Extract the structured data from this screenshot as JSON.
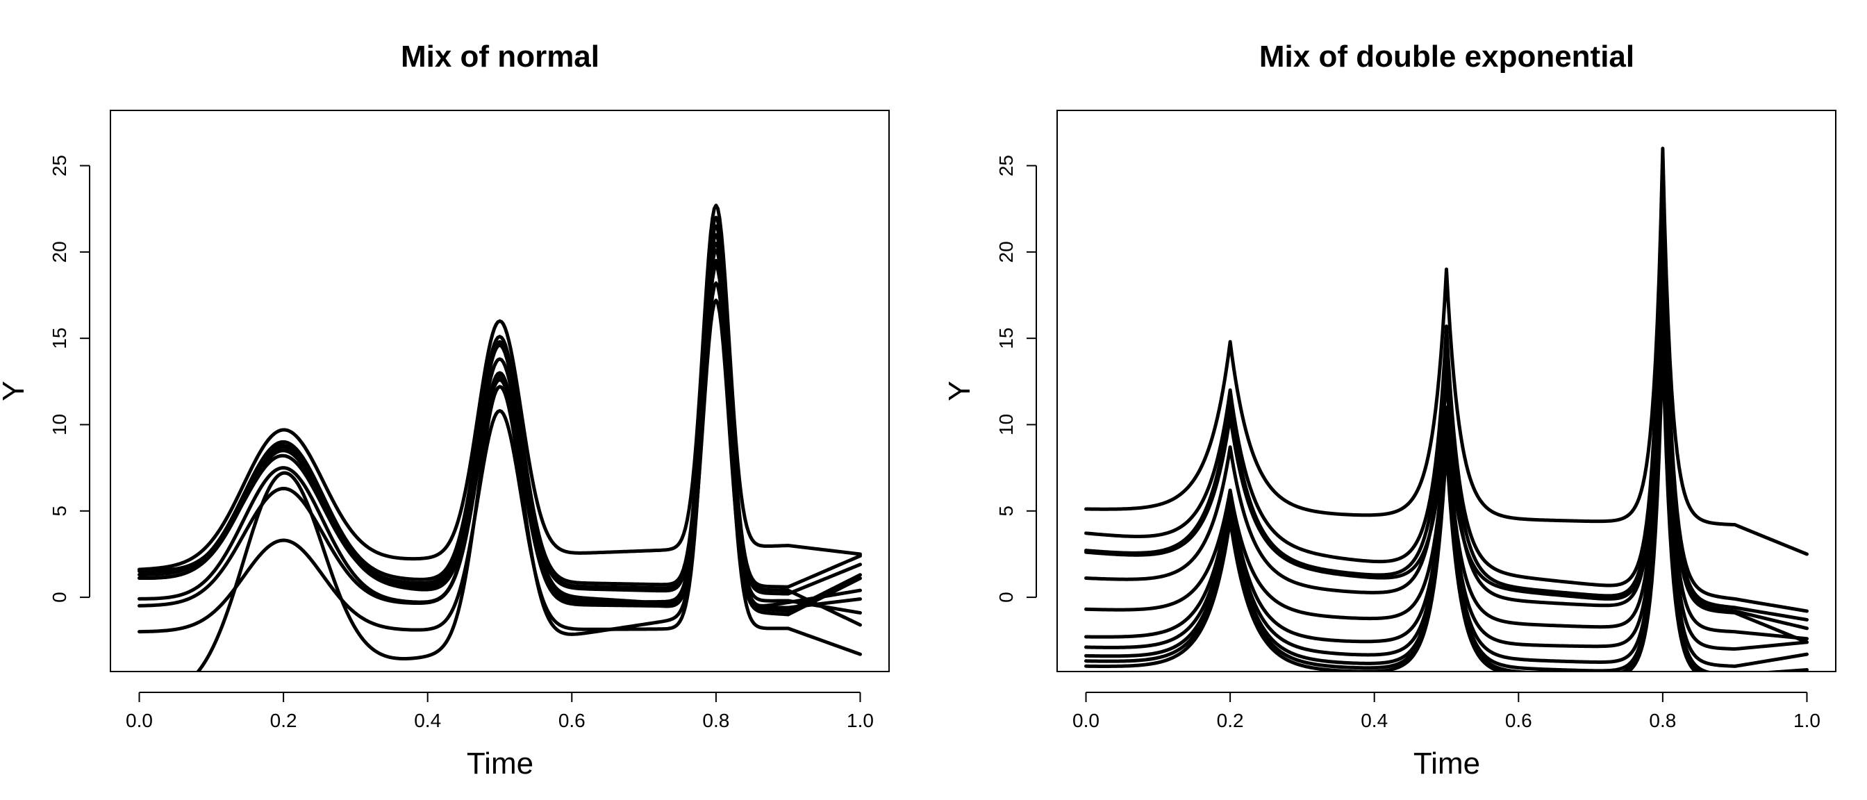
{
  "chart_data": [
    {
      "type": "line",
      "title": "Mix of normal",
      "xlabel": "Time",
      "ylabel": "Y",
      "xlim": [
        -0.04,
        1.04
      ],
      "ylim": [
        -4.3,
        28.2
      ],
      "xticks": [
        "0.0",
        "0.2",
        "0.4",
        "0.6",
        "0.8",
        "1.0"
      ],
      "yticks": [
        "0",
        "5",
        "10",
        "15",
        "20",
        "25"
      ],
      "line_color": "#000000",
      "kind": "gaussian",
      "peak_centers": [
        0.2,
        0.5,
        0.8
      ],
      "peak_widths": [
        0.055,
        0.03,
        0.018
      ],
      "series": [
        {
          "values": [
            1.3,
            9.0,
            15.1,
            22.0,
            0.6,
            2.4
          ]
        },
        {
          "values": [
            1.1,
            8.7,
            14.8,
            21.5,
            0.2,
            1.9
          ]
        },
        {
          "values": [
            1.6,
            8.2,
            14.6,
            21.0,
            -0.8,
            1.3
          ]
        },
        {
          "values": [
            1.6,
            9.7,
            16.0,
            22.7,
            3.0,
            2.5
          ]
        },
        {
          "values": [
            1.1,
            8.5,
            13.8,
            20.5,
            0.4,
            -1.6
          ]
        },
        {
          "values": [
            -0.5,
            6.3,
            12.6,
            20.1,
            -0.2,
            -0.9
          ]
        },
        {
          "values": [
            -0.1,
            7.5,
            13.0,
            19.5,
            -0.6,
            -0.1
          ]
        },
        {
          "values": [
            -2.0,
            3.3,
            10.8,
            19.2,
            -1.8,
            -3.3
          ]
        },
        {
          "values": [
            -6.0,
            7.2,
            12.2,
            18.2,
            -0.3,
            0.4
          ]
        },
        {
          "values": [
            1.5,
            8.8,
            12.8,
            17.2,
            -1.0,
            1.1
          ]
        }
      ]
    },
    {
      "type": "line",
      "title": "Mix of double exponential",
      "xlabel": "Time",
      "ylabel": "Y",
      "xlim": [
        -0.04,
        1.04
      ],
      "ylim": [
        -4.3,
        28.2
      ],
      "xticks": [
        "0.0",
        "0.2",
        "0.4",
        "0.6",
        "0.8",
        "1.0"
      ],
      "yticks": [
        "0",
        "5",
        "10",
        "15",
        "20",
        "25"
      ],
      "line_color": "#000000",
      "kind": "laplace",
      "peak_centers": [
        0.2,
        0.5,
        0.8
      ],
      "peak_widths": [
        0.03,
        0.018,
        0.012
      ],
      "series": [
        {
          "values": [
            5.1,
            14.8,
            19.0,
            26.0,
            4.2,
            2.5
          ]
        },
        {
          "values": [
            3.7,
            12.0,
            15.7,
            25.5,
            -0.1,
            -0.8
          ]
        },
        {
          "values": [
            2.7,
            11.2,
            14.4,
            24.5,
            -0.6,
            -1.3
          ]
        },
        {
          "values": [
            2.6,
            10.5,
            11.0,
            23.0,
            -0.8,
            -1.8
          ]
        },
        {
          "values": [
            1.1,
            8.7,
            13.0,
            22.0,
            -0.9,
            -2.6
          ]
        },
        {
          "values": [
            -0.7,
            6.2,
            10.2,
            21.0,
            -2.0,
            -2.4
          ]
        },
        {
          "values": [
            -2.3,
            6.0,
            9.8,
            20.0,
            -3.0,
            -2.6
          ]
        },
        {
          "values": [
            -2.9,
            5.6,
            9.5,
            19.0,
            -4.0,
            -3.3
          ]
        },
        {
          "values": [
            -3.4,
            5.2,
            9.3,
            17.5,
            -4.5,
            -4.2
          ]
        },
        {
          "values": [
            -3.7,
            4.8,
            9.0,
            16.5,
            -4.7,
            -4.3
          ]
        },
        {
          "values": [
            -4.0,
            4.5,
            8.8,
            15.0,
            -4.8,
            -4.3
          ]
        }
      ]
    }
  ]
}
